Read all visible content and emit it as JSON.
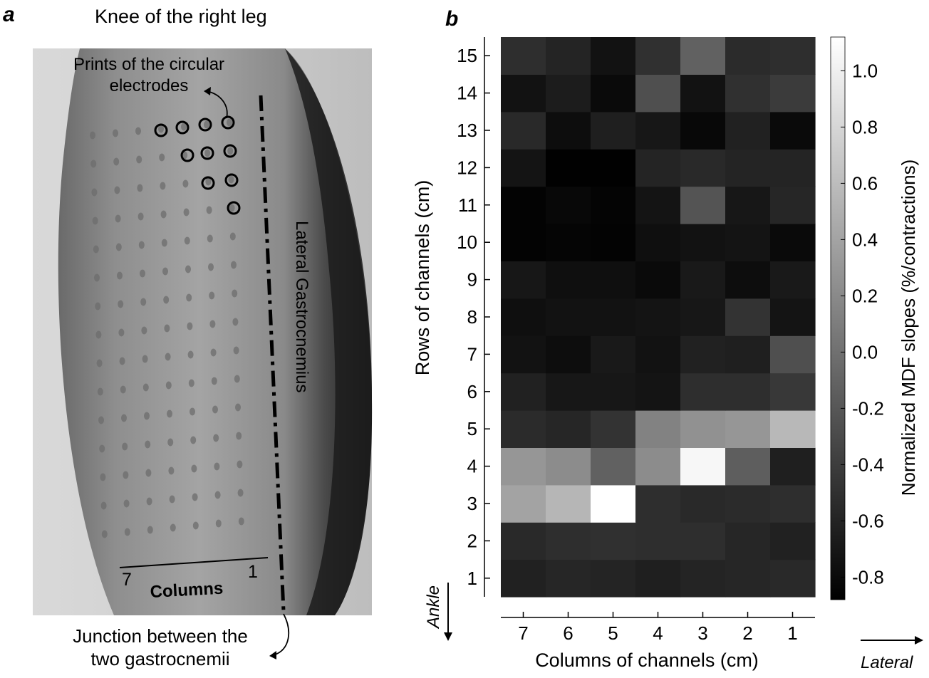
{
  "panel_a": {
    "letter": "a",
    "title": "Knee of the right leg",
    "electrodes_label_line1": "Prints of the circular",
    "electrodes_label_line2": "electrodes",
    "muscle_label": "Lateral Gastrocnemius",
    "column_left": "7",
    "column_right": "1",
    "columns_label": "Columns",
    "junction_line1": "Junction between the",
    "junction_line2": "two gastrocnemii"
  },
  "panel_b": {
    "letter": "b",
    "ankle_label": "Ankle",
    "lateral_label": "Lateral"
  },
  "chart_data": {
    "type": "heatmap",
    "title": "",
    "xlabel": "Columns of channels (cm)",
    "ylabel": "Rows of channels (cm)",
    "colorbar_label": "Normalized MDF slopes (%/contractions)",
    "colorbar_ticks": [
      "1.0",
      "0.8",
      "0.6",
      "0.4",
      "0.2",
      "0.0",
      "-0.2",
      "-0.4",
      "-0.6",
      "-0.8"
    ],
    "colorbar_range": [
      -0.88,
      1.12
    ],
    "colormap": "gray",
    "x_categories": [
      "7",
      "6",
      "5",
      "4",
      "3",
      "2",
      "1"
    ],
    "y_categories": [
      "1",
      "2",
      "3",
      "4",
      "5",
      "6",
      "7",
      "8",
      "9",
      "10",
      "11",
      "12",
      "13",
      "14",
      "15"
    ],
    "values": [
      [
        -0.62,
        -0.58,
        -0.6,
        -0.64,
        -0.6,
        -0.58,
        -0.56
      ],
      [
        -0.56,
        -0.52,
        -0.5,
        -0.52,
        -0.52,
        -0.58,
        -0.62
      ],
      [
        0.4,
        0.55,
        1.12,
        -0.52,
        -0.56,
        -0.54,
        -0.52
      ],
      [
        0.3,
        0.22,
        -0.12,
        0.22,
        1.06,
        -0.14,
        -0.64
      ],
      [
        -0.54,
        -0.58,
        -0.48,
        0.14,
        0.26,
        0.3,
        0.56
      ],
      [
        -0.62,
        -0.7,
        -0.7,
        -0.72,
        -0.52,
        -0.52,
        -0.44
      ],
      [
        -0.74,
        -0.78,
        -0.68,
        -0.74,
        -0.62,
        -0.64,
        -0.26
      ],
      [
        -0.76,
        -0.74,
        -0.74,
        -0.72,
        -0.7,
        -0.48,
        -0.72
      ],
      [
        -0.7,
        -0.76,
        -0.76,
        -0.8,
        -0.68,
        -0.78,
        -0.68
      ],
      [
        -0.86,
        -0.84,
        -0.86,
        -0.76,
        -0.74,
        -0.72,
        -0.8
      ],
      [
        -0.86,
        -0.82,
        -0.85,
        -0.72,
        -0.22,
        -0.7,
        -0.58
      ],
      [
        -0.72,
        -0.87,
        -0.87,
        -0.6,
        -0.56,
        -0.6,
        -0.6
      ],
      [
        -0.56,
        -0.78,
        -0.64,
        -0.7,
        -0.82,
        -0.62,
        -0.8
      ],
      [
        -0.74,
        -0.66,
        -0.8,
        -0.26,
        -0.74,
        -0.5,
        -0.42
      ],
      [
        -0.52,
        -0.6,
        -0.74,
        -0.5,
        -0.12,
        -0.54,
        -0.52
      ]
    ]
  }
}
